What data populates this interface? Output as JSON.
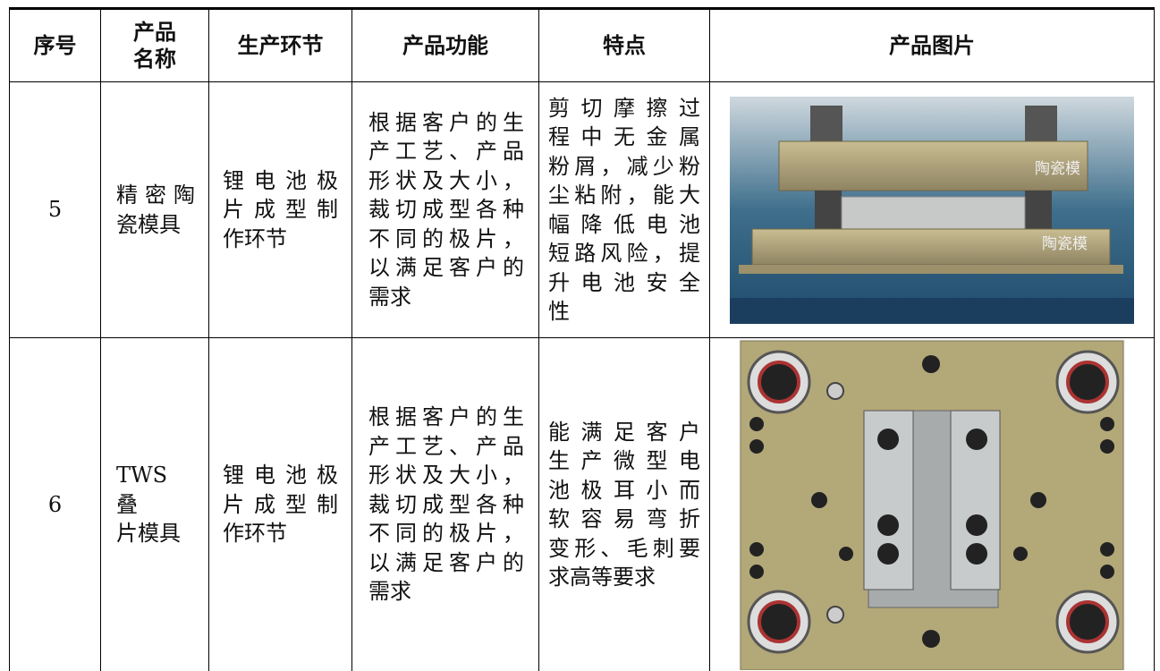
{
  "table": {
    "headers": [
      "序号",
      [
        "产品",
        "名称"
      ],
      "生产环节",
      "产品功能",
      "特点",
      "产品图片"
    ],
    "rows": [
      {
        "no": "5",
        "name": [
          "精密陶",
          "瓷模具"
        ],
        "stage": [
          "锂电池极",
          "片成型制",
          "作环节"
        ],
        "function": [
          "根据客户的生",
          "产工艺、产品",
          "形状及大小，",
          "裁切成型各种",
          "不同的极片，",
          "以满足客户的",
          "需求"
        ],
        "features": [
          "剪切摩擦过",
          "程中无金属",
          "粉屑，减少粉",
          "尘粘附，能大",
          "幅降低电池",
          "短路风险，提",
          "升电池安全",
          "性"
        ],
        "image_labels": [
          "陶瓷模",
          "陶瓷模"
        ]
      },
      {
        "no": "6",
        "name": [
          "TWS 叠",
          "片模具"
        ],
        "stage": [
          "锂电池极",
          "片成型制",
          "作环节"
        ],
        "function": [
          "根据客户的生",
          "产工艺、产品",
          "形状及大小，",
          "裁切成型各种",
          "不同的极片，",
          "以满足客户的",
          "需求"
        ],
        "features": [
          "能满足客户",
          "生产微型电",
          "池极耳小而",
          "软容易弯折",
          "变形、毛刺要",
          "求高等要求"
        ]
      }
    ]
  }
}
